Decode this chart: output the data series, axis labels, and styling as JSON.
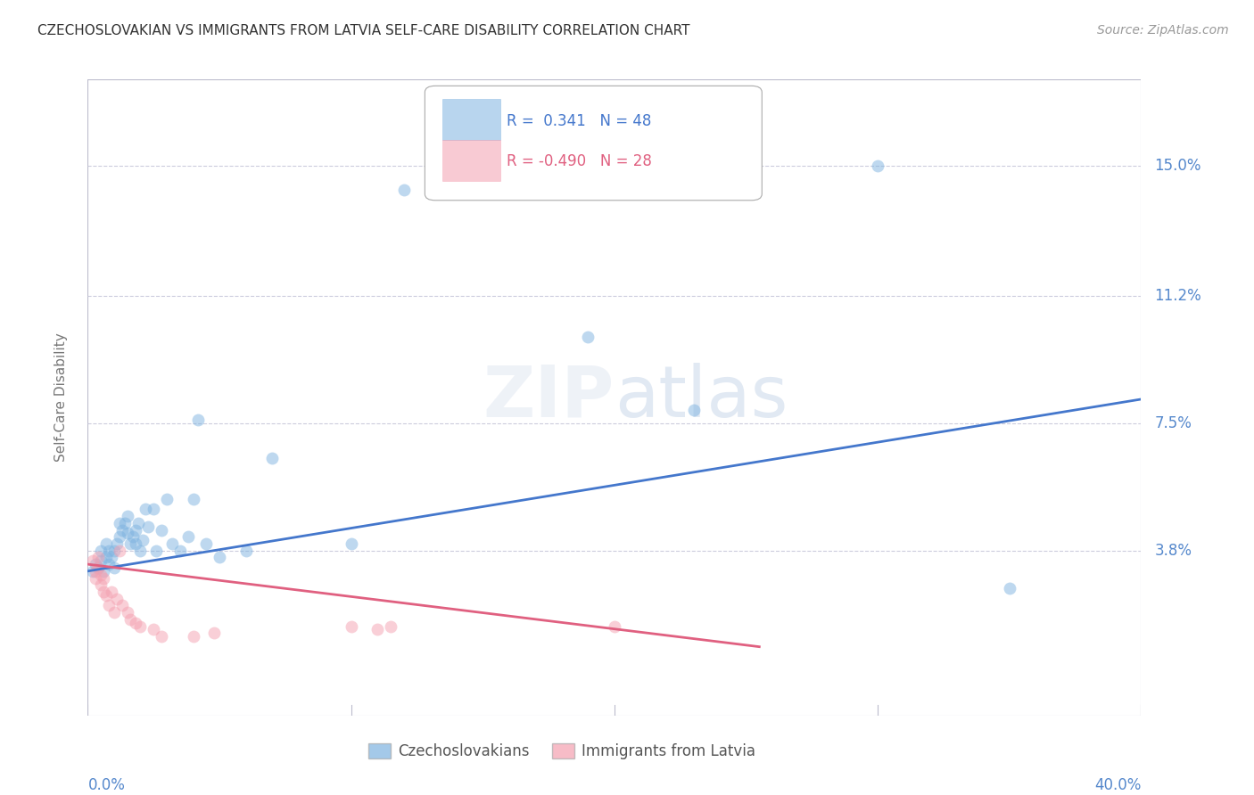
{
  "title": "CZECHOSLOVAKIAN VS IMMIGRANTS FROM LATVIA SELF-CARE DISABILITY CORRELATION CHART",
  "source": "Source: ZipAtlas.com",
  "ylabel": "Self-Care Disability",
  "ytick_labels": [
    "15.0%",
    "11.2%",
    "7.5%",
    "3.8%"
  ],
  "ytick_values": [
    0.15,
    0.112,
    0.075,
    0.038
  ],
  "xlim": [
    0.0,
    0.4
  ],
  "ylim": [
    -0.01,
    0.175
  ],
  "blue_color": "#7EB3E0",
  "pink_color": "#F4A0B0",
  "trend_blue": "#4477CC",
  "trend_pink": "#E06080",
  "blue_scatter": [
    [
      0.002,
      0.032
    ],
    [
      0.003,
      0.034
    ],
    [
      0.004,
      0.033
    ],
    [
      0.005,
      0.035
    ],
    [
      0.005,
      0.038
    ],
    [
      0.006,
      0.032
    ],
    [
      0.007,
      0.036
    ],
    [
      0.007,
      0.04
    ],
    [
      0.008,
      0.034
    ],
    [
      0.008,
      0.038
    ],
    [
      0.009,
      0.036
    ],
    [
      0.01,
      0.033
    ],
    [
      0.01,
      0.038
    ],
    [
      0.011,
      0.04
    ],
    [
      0.012,
      0.042
    ],
    [
      0.012,
      0.046
    ],
    [
      0.013,
      0.044
    ],
    [
      0.014,
      0.046
    ],
    [
      0.015,
      0.043
    ],
    [
      0.015,
      0.048
    ],
    [
      0.016,
      0.04
    ],
    [
      0.017,
      0.042
    ],
    [
      0.018,
      0.04
    ],
    [
      0.018,
      0.044
    ],
    [
      0.019,
      0.046
    ],
    [
      0.02,
      0.038
    ],
    [
      0.021,
      0.041
    ],
    [
      0.022,
      0.05
    ],
    [
      0.023,
      0.045
    ],
    [
      0.025,
      0.05
    ],
    [
      0.026,
      0.038
    ],
    [
      0.028,
      0.044
    ],
    [
      0.03,
      0.053
    ],
    [
      0.032,
      0.04
    ],
    [
      0.035,
      0.038
    ],
    [
      0.038,
      0.042
    ],
    [
      0.04,
      0.053
    ],
    [
      0.042,
      0.076
    ],
    [
      0.045,
      0.04
    ],
    [
      0.05,
      0.036
    ],
    [
      0.06,
      0.038
    ],
    [
      0.07,
      0.065
    ],
    [
      0.1,
      0.04
    ],
    [
      0.12,
      0.143
    ],
    [
      0.19,
      0.1
    ],
    [
      0.23,
      0.079
    ],
    [
      0.35,
      0.027
    ],
    [
      0.3,
      0.15
    ]
  ],
  "pink_scatter": [
    [
      0.002,
      0.035
    ],
    [
      0.003,
      0.032
    ],
    [
      0.003,
      0.03
    ],
    [
      0.004,
      0.033
    ],
    [
      0.004,
      0.036
    ],
    [
      0.005,
      0.028
    ],
    [
      0.005,
      0.031
    ],
    [
      0.006,
      0.026
    ],
    [
      0.006,
      0.03
    ],
    [
      0.007,
      0.025
    ],
    [
      0.008,
      0.022
    ],
    [
      0.009,
      0.026
    ],
    [
      0.01,
      0.02
    ],
    [
      0.011,
      0.024
    ],
    [
      0.012,
      0.038
    ],
    [
      0.013,
      0.022
    ],
    [
      0.015,
      0.02
    ],
    [
      0.016,
      0.018
    ],
    [
      0.018,
      0.017
    ],
    [
      0.02,
      0.016
    ],
    [
      0.025,
      0.015
    ],
    [
      0.028,
      0.013
    ],
    [
      0.04,
      0.013
    ],
    [
      0.048,
      0.014
    ],
    [
      0.1,
      0.016
    ],
    [
      0.11,
      0.015
    ],
    [
      0.115,
      0.016
    ],
    [
      0.2,
      0.016
    ]
  ],
  "blue_trend_x": [
    0.0,
    0.4
  ],
  "blue_trend_y": [
    0.032,
    0.082
  ],
  "pink_trend_x": [
    0.0,
    0.255
  ],
  "pink_trend_y": [
    0.034,
    0.01
  ],
  "watermark_zip": "ZIP",
  "watermark_atlas": "atlas",
  "background_color": "#FFFFFF",
  "grid_color": "#CCCCDD",
  "axis_color": "#BBBBCC",
  "label_color": "#5588CC",
  "title_color": "#333333",
  "source_color": "#999999",
  "ylabel_color": "#777777"
}
